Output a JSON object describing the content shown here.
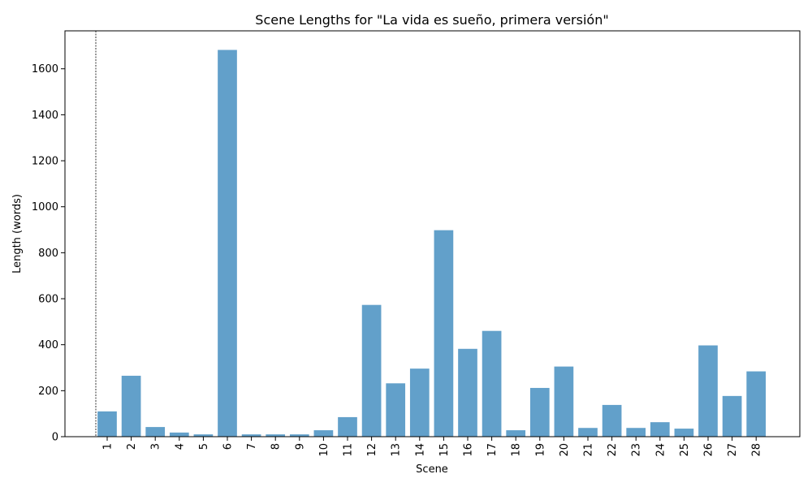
{
  "chart_data": {
    "type": "bar",
    "title": "Scene Lengths for \"La vida es sueño, primera versión\"",
    "xlabel": "Scene",
    "ylabel": "Length (words)",
    "categories": [
      "1",
      "2",
      "3",
      "4",
      "5",
      "6",
      "7",
      "8",
      "9",
      "10",
      "11",
      "12",
      "13",
      "14",
      "15",
      "16",
      "17",
      "18",
      "19",
      "20",
      "21",
      "22",
      "23",
      "24",
      "25",
      "26",
      "27",
      "28"
    ],
    "values": [
      110,
      265,
      42,
      18,
      10,
      1682,
      10,
      10,
      10,
      28,
      85,
      573,
      232,
      296,
      898,
      382,
      460,
      28,
      212,
      305,
      38,
      138,
      38,
      63,
      35,
      397,
      177,
      284
    ],
    "yticks": [
      0,
      200,
      400,
      600,
      800,
      1000,
      1200,
      1400,
      1600
    ],
    "ylim": [
      0,
      1765
    ],
    "color": "#1f77b4",
    "grid": false,
    "reference_line": {
      "position": "before scene 1",
      "style": "dotted"
    }
  }
}
